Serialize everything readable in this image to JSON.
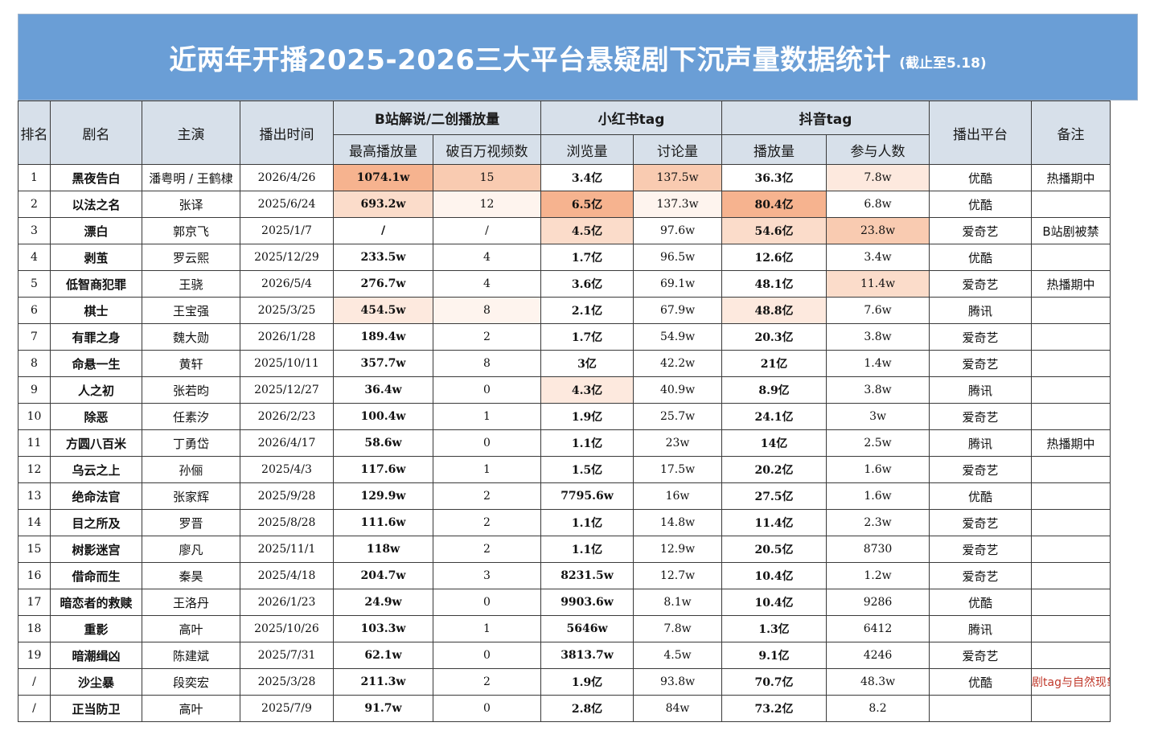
{
  "title": "近两年开播2025-2026三大平台悬疑剧下沉声量数据统计",
  "subtitle": "(截止至5.18)",
  "header": {
    "rank": "排名",
    "name": "剧名",
    "cast": "主演",
    "date": "播出时间",
    "bili_group": "B站解说/二创播放量",
    "bili_max": "最高播放量",
    "bili_million": "破百万视频数",
    "xhs_group": "小红书tag",
    "xhs_views": "浏览量",
    "xhs_disc": "讨论量",
    "dy_group": "抖音tag",
    "dy_plays": "播放量",
    "dy_people": "参与人数",
    "platform": "播出平台",
    "note": "备注"
  },
  "rows": [
    {
      "rank": "1",
      "name": "黑夜告白",
      "cast": "潘粤明 / 王鹤棣",
      "date": "2026/4/26",
      "bili_max": "1074.1w",
      "bili_million": "15",
      "xhs_views": "3.4亿",
      "xhs_disc": "137.5w",
      "dy_plays": "36.3亿",
      "dy_people": "7.8w",
      "platform": "优酷",
      "note": "热播期中"
    },
    {
      "rank": "2",
      "name": "以法之名",
      "cast": "张译",
      "date": "2025/6/24",
      "bili_max": "693.2w",
      "bili_million": "12",
      "xhs_views": "6.5亿",
      "xhs_disc": "137.3w",
      "dy_plays": "80.4亿",
      "dy_people": "6.8w",
      "platform": "优酷",
      "note": ""
    },
    {
      "rank": "3",
      "name": "漂白",
      "cast": "郭京飞",
      "date": "2025/1/7",
      "bili_max": "/",
      "bili_million": "/",
      "xhs_views": "4.5亿",
      "xhs_disc": "97.6w",
      "dy_plays": "54.6亿",
      "dy_people": "23.8w",
      "platform": "爱奇艺",
      "note": "B站剧被禁"
    },
    {
      "rank": "4",
      "name": "剥茧",
      "cast": "罗云熙",
      "date": "2025/12/29",
      "bili_max": "233.5w",
      "bili_million": "4",
      "xhs_views": "1.7亿",
      "xhs_disc": "96.5w",
      "dy_plays": "12.6亿",
      "dy_people": "3.4w",
      "platform": "优酷",
      "note": ""
    },
    {
      "rank": "5",
      "name": "低智商犯罪",
      "cast": "王骁",
      "date": "2026/5/4",
      "bili_max": "276.7w",
      "bili_million": "4",
      "xhs_views": "3.6亿",
      "xhs_disc": "69.1w",
      "dy_plays": "48.1亿",
      "dy_people": "11.4w",
      "platform": "爱奇艺",
      "note": "热播期中"
    },
    {
      "rank": "6",
      "name": "棋士",
      "cast": "王宝强",
      "date": "2025/3/25",
      "bili_max": "454.5w",
      "bili_million": "8",
      "xhs_views": "2.1亿",
      "xhs_disc": "67.9w",
      "dy_plays": "48.8亿",
      "dy_people": "7.6w",
      "platform": "腾讯",
      "note": ""
    },
    {
      "rank": "7",
      "name": "有罪之身",
      "cast": "魏大勋",
      "date": "2026/1/28",
      "bili_max": "189.4w",
      "bili_million": "2",
      "xhs_views": "1.7亿",
      "xhs_disc": "54.9w",
      "dy_plays": "20.3亿",
      "dy_people": "3.8w",
      "platform": "爱奇艺",
      "note": ""
    },
    {
      "rank": "8",
      "name": "命悬一生",
      "cast": "黄轩",
      "date": "2025/10/11",
      "bili_max": "357.7w",
      "bili_million": "8",
      "xhs_views": "3亿",
      "xhs_disc": "42.2w",
      "dy_plays": "21亿",
      "dy_people": "1.4w",
      "platform": "爱奇艺",
      "note": ""
    },
    {
      "rank": "9",
      "name": "人之初",
      "cast": "张若昀",
      "date": "2025/12/27",
      "bili_max": "36.4w",
      "bili_million": "0",
      "xhs_views": "4.3亿",
      "xhs_disc": "40.9w",
      "dy_plays": "8.9亿",
      "dy_people": "3.8w",
      "platform": "腾讯",
      "note": ""
    },
    {
      "rank": "10",
      "name": "除恶",
      "cast": "任素汐",
      "date": "2026/2/23",
      "bili_max": "100.4w",
      "bili_million": "1",
      "xhs_views": "1.9亿",
      "xhs_disc": "25.7w",
      "dy_plays": "24.1亿",
      "dy_people": "3w",
      "platform": "爱奇艺",
      "note": ""
    },
    {
      "rank": "11",
      "name": "方圆八百米",
      "cast": "丁勇岱",
      "date": "2026/4/17",
      "bili_max": "58.6w",
      "bili_million": "0",
      "xhs_views": "1.1亿",
      "xhs_disc": "23w",
      "dy_plays": "14亿",
      "dy_people": "2.5w",
      "platform": "腾讯",
      "note": "热播期中"
    },
    {
      "rank": "12",
      "name": "乌云之上",
      "cast": "孙俪",
      "date": "2025/4/3",
      "bili_max": "117.6w",
      "bili_million": "1",
      "xhs_views": "1.5亿",
      "xhs_disc": "17.5w",
      "dy_plays": "20.2亿",
      "dy_people": "1.6w",
      "platform": "爱奇艺",
      "note": ""
    },
    {
      "rank": "13",
      "name": "绝命法官",
      "cast": "张家辉",
      "date": "2025/9/28",
      "bili_max": "129.9w",
      "bili_million": "2",
      "xhs_views": "7795.6w",
      "xhs_disc": "16w",
      "dy_plays": "27.5亿",
      "dy_people": "1.6w",
      "platform": "优酷",
      "note": ""
    },
    {
      "rank": "14",
      "name": "目之所及",
      "cast": "罗晋",
      "date": "2025/8/28",
      "bili_max": "111.6w",
      "bili_million": "2",
      "xhs_views": "1.1亿",
      "xhs_disc": "14.8w",
      "dy_plays": "11.4亿",
      "dy_people": "2.3w",
      "platform": "爱奇艺",
      "note": ""
    },
    {
      "rank": "15",
      "name": "树影迷宫",
      "cast": "廖凡",
      "date": "2025/11/1",
      "bili_max": "118w",
      "bili_million": "2",
      "xhs_views": "1.1亿",
      "xhs_disc": "12.9w",
      "dy_plays": "20.5亿",
      "dy_people": "8730",
      "platform": "爱奇艺",
      "note": ""
    },
    {
      "rank": "16",
      "name": "借命而生",
      "cast": "秦昊",
      "date": "2025/4/18",
      "bili_max": "204.7w",
      "bili_million": "3",
      "xhs_views": "8231.5w",
      "xhs_disc": "12.7w",
      "dy_plays": "10.4亿",
      "dy_people": "1.2w",
      "platform": "爱奇艺",
      "note": ""
    },
    {
      "rank": "17",
      "name": "暗恋者的救赎",
      "cast": "王洛丹",
      "date": "2026/1/23",
      "bili_max": "24.9w",
      "bili_million": "0",
      "xhs_views": "9903.6w",
      "xhs_disc": "8.1w",
      "dy_plays": "10.4亿",
      "dy_people": "9286",
      "platform": "优酷",
      "note": ""
    },
    {
      "rank": "18",
      "name": "重影",
      "cast": "高叶",
      "date": "2025/10/26",
      "bili_max": "103.3w",
      "bili_million": "1",
      "xhs_views": "5646w",
      "xhs_disc": "7.8w",
      "dy_plays": "1.3亿",
      "dy_people": "6412",
      "platform": "腾讯",
      "note": ""
    },
    {
      "rank": "19",
      "name": "暗潮缉凶",
      "cast": "陈建斌",
      "date": "2025/7/31",
      "bili_max": "62.1w",
      "bili_million": "0",
      "xhs_views": "3813.7w",
      "xhs_disc": "4.5w",
      "dy_plays": "9.1亿",
      "dy_people": "4246",
      "platform": "爱奇艺",
      "note": ""
    },
    {
      "rank": "/",
      "name": "沙尘暴",
      "cast": "段奕宏",
      "date": "2025/3/28",
      "bili_max": "211.3w",
      "bili_million": "2",
      "xhs_views": "1.9亿",
      "xhs_disc": "93.8w",
      "dy_plays": "70.7亿",
      "dy_people": "48.3w",
      "platform": "优酷",
      "note": "剧tag与自然现象重名"
    },
    {
      "rank": "/",
      "name": "正当防卫",
      "cast": "高叶",
      "date": "2025/7/9",
      "bili_max": "91.7w",
      "bili_million": "0",
      "xhs_views": "2.8亿",
      "xhs_disc": "84w",
      "dy_plays": "73.2亿",
      "dy_people": "8.2",
      "platform": "",
      "note": ""
    }
  ],
  "highlight_colors": {
    "strong": "#f6b38f",
    "medium": "#f9cbb1",
    "light": "#fbdcca",
    "faint": "#fde9de",
    "trace": "#fef4ee"
  },
  "highlights": {
    "0": {
      "bili_max": "h1",
      "bili_million": "h2",
      "xhs_disc": "h2",
      "dy_people": "h4"
    },
    "1": {
      "bili_max": "h3",
      "bili_million": "h5",
      "xhs_views": "h1",
      "xhs_disc": "h5",
      "dy_plays": "h1"
    },
    "2": {
      "xhs_views": "h3",
      "dy_plays": "h3",
      "dy_people": "h2"
    },
    "4": {
      "dy_people": "h3"
    },
    "5": {
      "bili_max": "h4",
      "bili_million": "h5",
      "dy_plays": "h4"
    },
    "8": {
      "xhs_views": "h4"
    }
  }
}
